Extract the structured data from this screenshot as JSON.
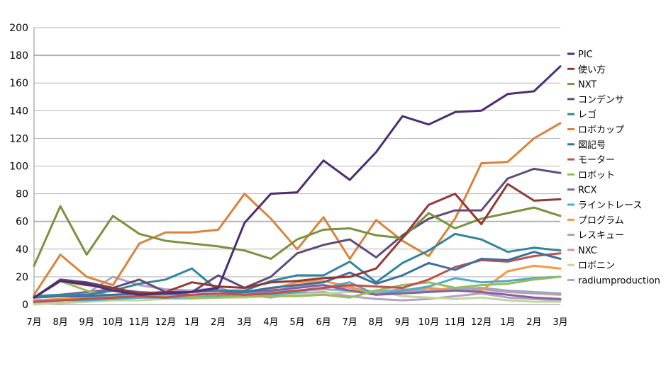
{
  "chart_data": {
    "type": "line",
    "title": "",
    "xlabel": "",
    "ylabel": "",
    "ylim": [
      0,
      200
    ],
    "yticks": [
      0,
      20,
      40,
      60,
      80,
      100,
      120,
      140,
      160,
      180,
      200
    ],
    "grid": "horizontal",
    "legend": "right",
    "categories": [
      "7月",
      "8月",
      "9月",
      "10月",
      "11月",
      "12月",
      "1月",
      "2月",
      "3月",
      "4月",
      "5月",
      "6月",
      "7月",
      "8月",
      "9月",
      "10月",
      "11月",
      "12月",
      "1月",
      "2月",
      "3月"
    ],
    "series": [
      {
        "name": "PIC",
        "color": "#4b2e73",
        "values": [
          5,
          17,
          15,
          10,
          7,
          8,
          9,
          12,
          59,
          80,
          81,
          104,
          90,
          110,
          136,
          130,
          139,
          140,
          152,
          154,
          172
        ]
      },
      {
        "name": "使い方",
        "color": "#953735",
        "values": [
          5,
          17,
          14,
          12,
          8,
          9,
          16,
          13,
          12,
          16,
          17,
          19,
          20,
          26,
          48,
          72,
          80,
          58,
          87,
          75,
          76
        ]
      },
      {
        "name": "NXT",
        "color": "#77933c",
        "values": [
          28,
          71,
          36,
          64,
          51,
          46,
          44,
          42,
          39,
          33,
          47,
          54,
          55,
          50,
          48,
          66,
          55,
          62,
          66,
          70,
          64
        ]
      },
      {
        "name": "コンデンサ",
        "color": "#604a7b",
        "values": [
          5,
          18,
          16,
          12,
          18,
          9,
          9,
          21,
          12,
          20,
          37,
          43,
          47,
          34,
          50,
          62,
          68,
          68,
          91,
          98,
          95
        ]
      },
      {
        "name": "レゴ",
        "color": "#31859c",
        "values": [
          6,
          7,
          7,
          10,
          15,
          18,
          26,
          10,
          10,
          17,
          21,
          21,
          31,
          16,
          30,
          39,
          51,
          47,
          38,
          41,
          39
        ]
      },
      {
        "name": "ロボカップ",
        "color": "#d9833b",
        "values": [
          7,
          36,
          20,
          14,
          44,
          52,
          52,
          54,
          80,
          62,
          40,
          63,
          33,
          61,
          46,
          35,
          62,
          102,
          103,
          120,
          131
        ]
      },
      {
        "name": "図記号",
        "color": "#3d6fa0",
        "values": [
          5,
          6,
          6,
          7,
          8,
          8,
          9,
          10,
          9,
          12,
          14,
          16,
          23,
          15,
          21,
          30,
          25,
          33,
          32,
          38,
          33
        ]
      },
      {
        "name": "モーター",
        "color": "#c0504d",
        "values": [
          2,
          3,
          4,
          5,
          6,
          5,
          7,
          8,
          7,
          8,
          10,
          12,
          14,
          13,
          12,
          18,
          27,
          32,
          31,
          35,
          37
        ]
      },
      {
        "name": "ロボット",
        "color": "#9bbb59",
        "values": [
          5,
          17,
          10,
          6,
          6,
          6,
          5,
          5,
          6,
          6,
          6,
          7,
          5,
          10,
          14,
          16,
          12,
          14,
          15,
          18,
          20
        ]
      },
      {
        "name": "RCX",
        "color": "#8064a2",
        "values": [
          5,
          7,
          9,
          11,
          9,
          8,
          7,
          8,
          9,
          10,
          12,
          14,
          10,
          7,
          8,
          9,
          10,
          9,
          7,
          5,
          4
        ]
      },
      {
        "name": "ライントレース",
        "color": "#4bacc6",
        "values": [
          2,
          3,
          3,
          4,
          5,
          5,
          5,
          6,
          6,
          7,
          9,
          12,
          16,
          7,
          10,
          13,
          19,
          16,
          17,
          19,
          20
        ]
      },
      {
        "name": "プログラム",
        "color": "#f79646",
        "values": [
          3,
          4,
          4,
          5,
          5,
          5,
          6,
          7,
          9,
          11,
          16,
          17,
          13,
          7,
          10,
          12,
          10,
          10,
          24,
          28,
          26
        ]
      },
      {
        "name": "レスキュー",
        "color": "#93a9cf",
        "values": [
          3,
          4,
          5,
          6,
          6,
          7,
          7,
          8,
          8,
          9,
          10,
          11,
          10,
          9,
          11,
          10,
          11,
          12,
          10,
          9,
          8
        ]
      },
      {
        "name": "NXC",
        "color": "#d99694",
        "values": [
          2,
          3,
          4,
          5,
          5,
          6,
          6,
          7,
          7,
          9,
          13,
          14,
          12,
          8,
          9,
          10,
          12,
          11,
          9,
          8,
          7
        ]
      },
      {
        "name": "ロボニン",
        "color": "#c3d69b",
        "values": [
          0,
          1,
          2,
          3,
          3,
          4,
          4,
          5,
          5,
          6,
          7,
          8,
          9,
          10,
          6,
          5,
          4,
          5,
          3,
          2,
          2
        ]
      },
      {
        "name": "radiumproduction",
        "color": "#b3a2c7",
        "values": [
          1,
          2,
          8,
          20,
          14,
          11,
          10,
          12,
          7,
          5,
          8,
          9,
          6,
          4,
          3,
          4,
          6,
          8,
          5,
          4,
          3
        ]
      }
    ]
  }
}
